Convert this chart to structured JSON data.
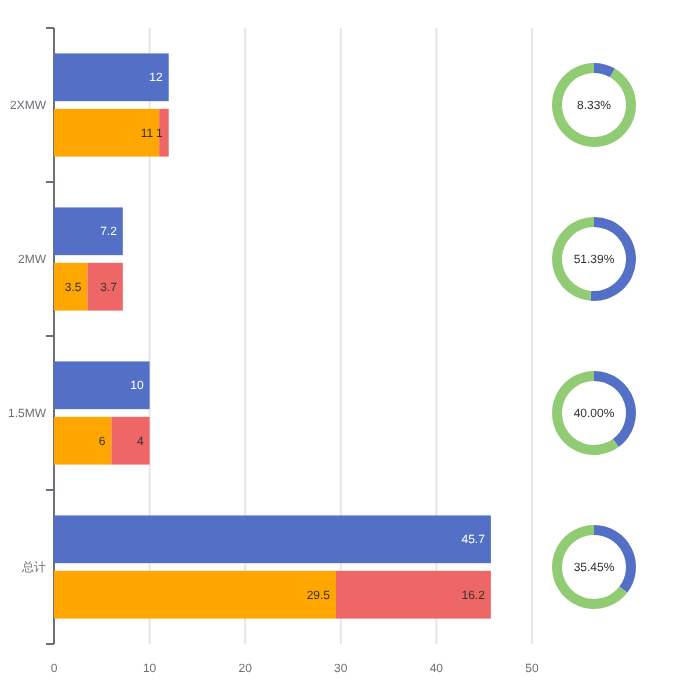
{
  "chart_data": [
    {
      "type": "bar",
      "orientation": "horizontal",
      "categories": [
        "2XMW",
        "2MW",
        "1.5MW",
        "总计"
      ],
      "series": [
        {
          "color": "#5470c6",
          "values": [
            12,
            7.2,
            10,
            45.7
          ]
        }
      ],
      "xlim": [
        0,
        50
      ],
      "xticks": [
        0,
        10,
        20,
        30,
        40,
        50
      ],
      "grid": "x",
      "data_labels": true
    },
    {
      "type": "bar",
      "orientation": "horizontal",
      "stacked": true,
      "categories": [
        null,
        null,
        null,
        null
      ],
      "tick_labels": false,
      "series": [
        {
          "color": "#ffa600",
          "values": [
            11,
            3.5,
            6,
            29.5
          ]
        },
        {
          "color": "#ee6666",
          "values": [
            1,
            3.7,
            4,
            16.2
          ]
        }
      ],
      "xlim": [
        0,
        50
      ],
      "xticks": [
        0,
        10,
        20,
        30,
        40,
        50
      ],
      "data_labels": true
    },
    {
      "type": "donut",
      "categories": [
        null,
        null
      ],
      "values": [
        8.33,
        91.67
      ],
      "colors": [
        "#5470c6",
        "#91cc75"
      ],
      "annotations": [
        "8.33%"
      ]
    },
    {
      "type": "donut",
      "categories": [
        null,
        null
      ],
      "values": [
        51.39,
        48.61
      ],
      "colors": [
        "#5470c6",
        "#91cc75"
      ],
      "annotations": [
        "51.39%"
      ]
    },
    {
      "type": "donut",
      "categories": [
        null,
        null
      ],
      "values": [
        40,
        60
      ],
      "colors": [
        "#5470c6",
        "#91cc75"
      ],
      "annotations": [
        "40.00%"
      ]
    },
    {
      "type": "donut",
      "categories": [
        null,
        null
      ],
      "values": [
        35.45,
        64.55
      ],
      "colors": [
        "#5470c6",
        "#91cc75"
      ],
      "annotations": [
        "35.45%"
      ]
    }
  ]
}
